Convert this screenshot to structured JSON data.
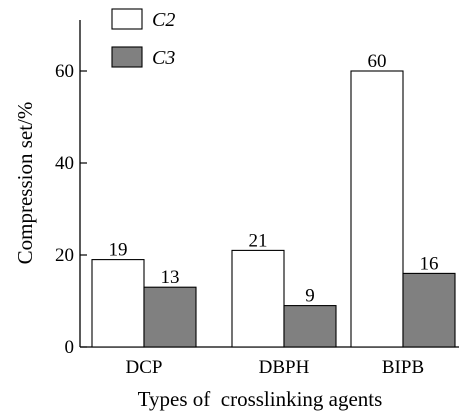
{
  "chart_data": {
    "type": "bar",
    "categories": [
      "DCP",
      "DBPH",
      "BIPB"
    ],
    "series": [
      {
        "name": "C2",
        "values": [
          19,
          21,
          60
        ],
        "color": "#ffffff"
      },
      {
        "name": "C3",
        "values": [
          13,
          9,
          16
        ],
        "color": "#808080"
      }
    ],
    "data_labels": [
      "19",
      "13",
      "21",
      "9",
      "60",
      "16"
    ],
    "xlabel": "Types of  crosslinking agents",
    "ylabel": "Compression set/%",
    "ylim": [
      0,
      70
    ],
    "yticks": [
      0,
      20,
      40,
      60
    ],
    "legend_position": "top-left",
    "grid": false
  }
}
